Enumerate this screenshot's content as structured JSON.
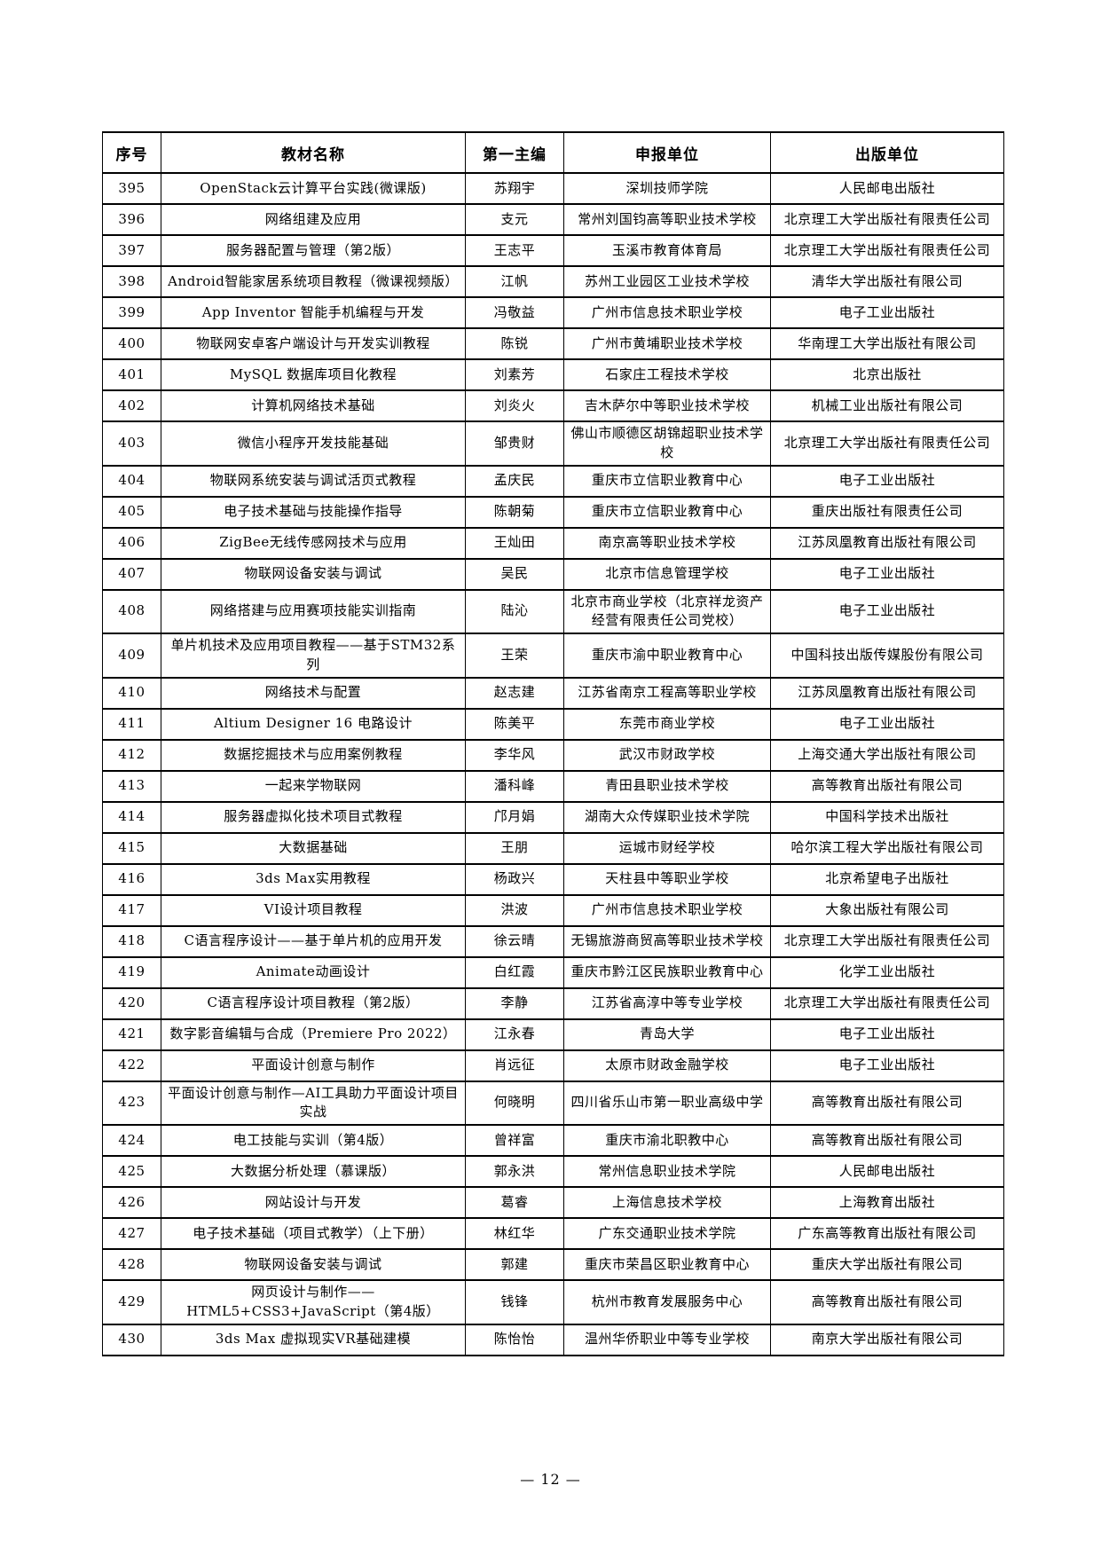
{
  "footer": {
    "text": "— 12 —"
  },
  "table": {
    "headers": [
      "序号",
      "教材名称",
      "第一主编",
      "申报单位",
      "出版单位"
    ],
    "rows": [
      [
        "395",
        "OpenStack云计算平台实践(微课版)",
        "苏翔宇",
        "深圳技师学院",
        "人民邮电出版社"
      ],
      [
        "396",
        "网络组建及应用",
        "支元",
        "常州刘国钧高等职业技术学校",
        "北京理工大学出版社有限责任公司"
      ],
      [
        "397",
        "服务器配置与管理（第2版）",
        "王志平",
        "玉溪市教育体育局",
        "北京理工大学出版社有限责任公司"
      ],
      [
        "398",
        "Android智能家居系统项目教程（微课视频版）",
        "江帆",
        "苏州工业园区工业技术学校",
        "清华大学出版社有限公司"
      ],
      [
        "399",
        "App Inventor 智能手机编程与开发",
        "冯敬益",
        "广州市信息技术职业学校",
        "电子工业出版社"
      ],
      [
        "400",
        "物联网安卓客户端设计与开发实训教程",
        "陈锐",
        "广州市黄埔职业技术学校",
        "华南理工大学出版社有限公司"
      ],
      [
        "401",
        "MySQL 数据库项目化教程",
        "刘素芳",
        "石家庄工程技术学校",
        "北京出版社"
      ],
      [
        "402",
        "计算机网络技术基础",
        "刘炎火",
        "吉木萨尔中等职业技术学校",
        "机械工业出版社有限公司"
      ],
      [
        "403",
        "微信小程序开发技能基础",
        "邹贵财",
        "佛山市顺德区胡锦超职业技术学校",
        "北京理工大学出版社有限责任公司"
      ],
      [
        "404",
        "物联网系统安装与调试活页式教程",
        "孟庆民",
        "重庆市立信职业教育中心",
        "电子工业出版社"
      ],
      [
        "405",
        "电子技术基础与技能操作指导",
        "陈朝菊",
        "重庆市立信职业教育中心",
        "重庆出版社有限责任公司"
      ],
      [
        "406",
        "ZigBee无线传感网技术与应用",
        "王灿田",
        "南京高等职业技术学校",
        "江苏凤凰教育出版社有限公司"
      ],
      [
        "407",
        "物联网设备安装与调试",
        "吴民",
        "北京市信息管理学校",
        "电子工业出版社"
      ],
      [
        "408",
        "网络搭建与应用赛项技能实训指南",
        "陆沁",
        "北京市商业学校（北京祥龙资产经营有限责任公司党校）",
        "电子工业出版社"
      ],
      [
        "409",
        "单片机技术及应用项目教程——基于STM32系列",
        "王荣",
        "重庆市渝中职业教育中心",
        "中国科技出版传媒股份有限公司"
      ],
      [
        "410",
        "网络技术与配置",
        "赵志建",
        "江苏省南京工程高等职业学校",
        "江苏凤凰教育出版社有限公司"
      ],
      [
        "411",
        "Altium Designer 16 电路设计",
        "陈美平",
        "东莞市商业学校",
        "电子工业出版社"
      ],
      [
        "412",
        "数据挖掘技术与应用案例教程",
        "李华风",
        "武汉市财政学校",
        "上海交通大学出版社有限公司"
      ],
      [
        "413",
        "一起来学物联网",
        "潘科峰",
        "青田县职业技术学校",
        "高等教育出版社有限公司"
      ],
      [
        "414",
        "服务器虚拟化技术项目式教程",
        "邝月娟",
        "湖南大众传媒职业技术学院",
        "中国科学技术出版社"
      ],
      [
        "415",
        "大数据基础",
        "王朋",
        "运城市财经学校",
        "哈尔滨工程大学出版社有限公司"
      ],
      [
        "416",
        "3ds Max实用教程",
        "杨政兴",
        "天柱县中等职业学校",
        "北京希望电子出版社"
      ],
      [
        "417",
        "VI设计项目教程",
        "洪波",
        "广州市信息技术职业学校",
        "大象出版社有限公司"
      ],
      [
        "418",
        "C语言程序设计——基于单片机的应用开发",
        "徐云晴",
        "无锡旅游商贸高等职业技术学校",
        "北京理工大学出版社有限责任公司"
      ],
      [
        "419",
        "Animate动画设计",
        "白红霞",
        "重庆市黔江区民族职业教育中心",
        "化学工业出版社"
      ],
      [
        "420",
        "C语言程序设计项目教程（第2版）",
        "李静",
        "江苏省高淳中等专业学校",
        "北京理工大学出版社有限责任公司"
      ],
      [
        "421",
        "数字影音编辑与合成（Premiere Pro 2022）",
        "江永春",
        "青岛大学",
        "电子工业出版社"
      ],
      [
        "422",
        "平面设计创意与制作",
        "肖远征",
        "太原市财政金融学校",
        "电子工业出版社"
      ],
      [
        "423",
        "平面设计创意与制作—AI工具助力平面设计项目实战",
        "何晓明",
        "四川省乐山市第一职业高级中学",
        "高等教育出版社有限公司"
      ],
      [
        "424",
        "电工技能与实训（第4版）",
        "曾祥富",
        "重庆市渝北职教中心",
        "高等教育出版社有限公司"
      ],
      [
        "425",
        "大数据分析处理（慕课版）",
        "郭永洪",
        "常州信息职业技术学院",
        "人民邮电出版社"
      ],
      [
        "426",
        "网站设计与开发",
        "葛睿",
        "上海信息技术学校",
        "上海教育出版社"
      ],
      [
        "427",
        "电子技术基础（项目式教学）（上下册）",
        "林红华",
        "广东交通职业技术学院",
        "广东高等教育出版社有限公司"
      ],
      [
        "428",
        "物联网设备安装与调试",
        "郭建",
        "重庆市荣昌区职业教育中心",
        "重庆大学出版社有限公司"
      ],
      [
        "429",
        "网页设计与制作——HTML5+CSS3+JavaScript（第4版）",
        "钱锋",
        "杭州市教育发展服务中心",
        "高等教育出版社有限公司"
      ],
      [
        "430",
        "3ds Max 虚拟现实VR基础建模",
        "陈怡怡",
        "温州华侨职业中等专业学校",
        "南京大学出版社有限公司"
      ]
    ]
  }
}
